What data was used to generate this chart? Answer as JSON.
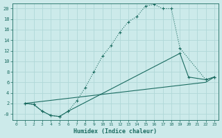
{
  "xlabel": "Humidex (Indice chaleur)",
  "bg_color": "#cceaea",
  "line_color": "#1a6b60",
  "grid_color": "#b0d8d8",
  "xlim": [
    -0.5,
    23.5
  ],
  "ylim": [
    -1.2,
    21
  ],
  "xticks": [
    0,
    1,
    2,
    3,
    4,
    5,
    6,
    7,
    8,
    9,
    10,
    11,
    12,
    13,
    14,
    15,
    16,
    17,
    18,
    19,
    20,
    21,
    22,
    23
  ],
  "yticks": [
    0,
    2,
    4,
    6,
    8,
    10,
    12,
    14,
    16,
    18,
    20
  ],
  "ytick_labels": [
    "-0",
    "2",
    "4",
    "6",
    "8",
    "10",
    "12",
    "14",
    "16",
    "18",
    "20"
  ],
  "curve1_x": [
    1,
    2,
    3,
    4,
    5,
    6,
    7,
    8,
    9,
    10,
    11,
    12,
    13,
    14,
    15,
    16,
    17,
    18,
    19,
    22,
    23
  ],
  "curve1_y": [
    2.0,
    1.8,
    0.5,
    -0.3,
    -0.5,
    0.5,
    2.5,
    5.0,
    8.0,
    11.0,
    13.0,
    15.5,
    17.5,
    18.5,
    20.5,
    20.8,
    20.0,
    20.0,
    12.5,
    6.5,
    7.0
  ],
  "curve2_x": [
    1,
    2,
    3,
    4,
    5,
    6,
    19,
    20,
    22,
    23
  ],
  "curve2_y": [
    2.0,
    1.8,
    0.5,
    -0.3,
    -0.5,
    0.5,
    11.5,
    7.0,
    6.5,
    7.0
  ],
  "curve3_x": [
    1,
    22,
    23
  ],
  "curve3_y": [
    2.0,
    6.0,
    7.0
  ]
}
